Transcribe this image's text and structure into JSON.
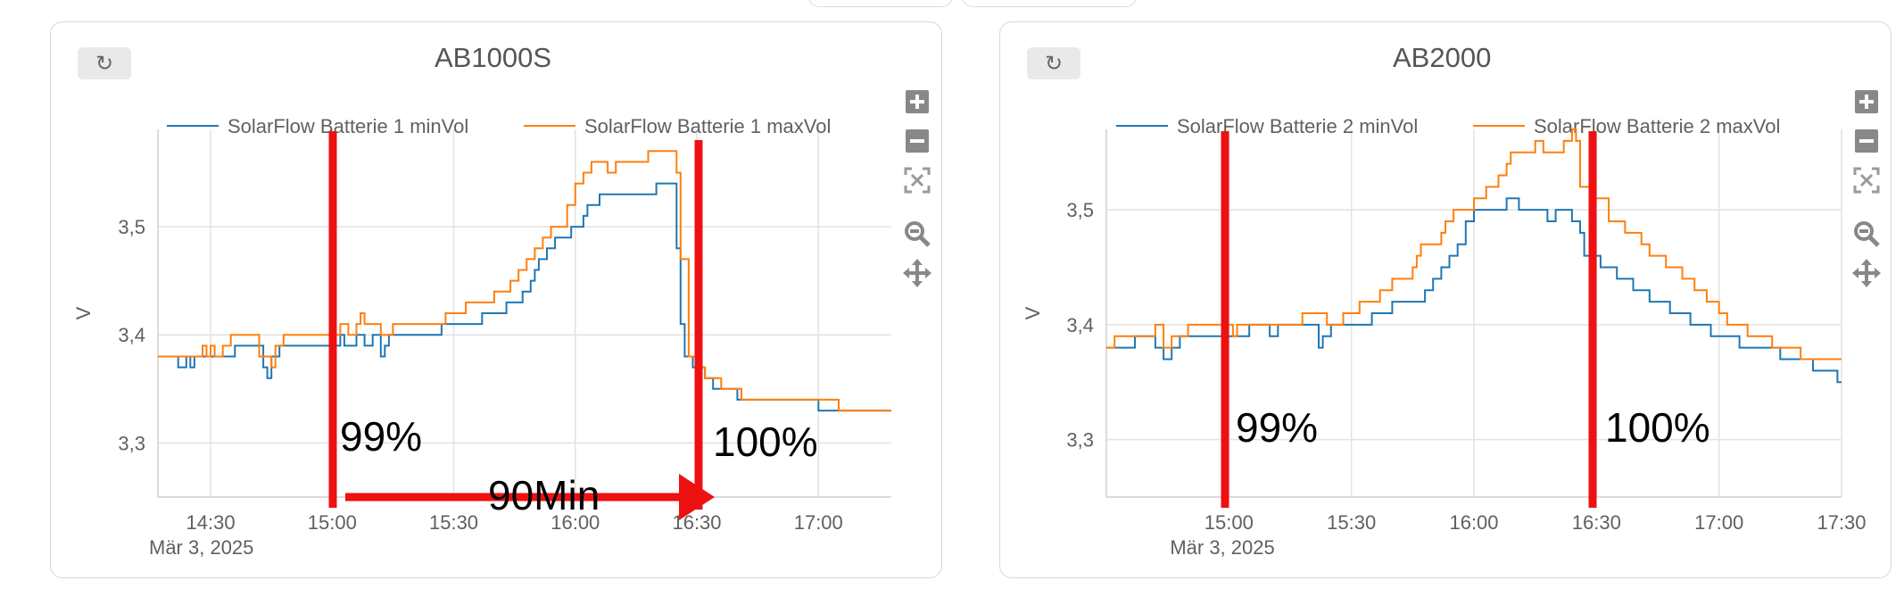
{
  "page_background": "#ffffff",
  "colors": {
    "min_series": "#1f77b4",
    "max_series": "#ff7f0e",
    "annotation": "#ee1111",
    "grid": "#e2e2e2",
    "axis_text": "#606060"
  },
  "panels": [
    {
      "reset_icon": "refresh-icon",
      "title": "AB1000S",
      "legend": [
        {
          "label": "SolarFlow Batterie 1 minVol",
          "color": "#1f77b4"
        },
        {
          "label": "SolarFlow Batterie 1 maxVol",
          "color": "#ff7f0e"
        }
      ],
      "ylabel": "V",
      "y_ticks": [
        "3,3",
        "3,4",
        "3,5"
      ],
      "x_ticks": [
        "14:30",
        "15:00",
        "15:30",
        "16:00",
        "16:30",
        "17:00"
      ],
      "x_date": "Mär 3, 2025",
      "annotations": {
        "left_label": "99%",
        "right_label": "100%",
        "duration_label": "90Min"
      },
      "modebar": [
        "zoom-in-icon",
        "zoom-out-icon",
        "autoscale-icon",
        "zoom-icon",
        "pan-icon"
      ]
    },
    {
      "reset_icon": "refresh-icon",
      "title": "AB2000",
      "legend": [
        {
          "label": "SolarFlow Batterie 2 minVol",
          "color": "#1f77b4"
        },
        {
          "label": "SolarFlow Batterie 2 maxVol",
          "color": "#ff7f0e"
        }
      ],
      "ylabel": "V",
      "y_ticks": [
        "3,3",
        "3,4",
        "3,5"
      ],
      "x_ticks": [
        "15:00",
        "15:30",
        "16:00",
        "16:30",
        "17:00",
        "17:30"
      ],
      "x_date": "Mär 3, 2025",
      "annotations": {
        "left_label": "99%",
        "right_label": "100%"
      },
      "modebar": [
        "zoom-in-icon",
        "zoom-out-icon",
        "autoscale-icon",
        "zoom-icon",
        "pan-icon"
      ]
    }
  ],
  "chart_data": [
    {
      "type": "line",
      "title": "AB1000S",
      "ylabel": "V",
      "x_unit": "time on Mär 3, 2025 (HH:MM)",
      "xlim": [
        "14:17",
        "17:18"
      ],
      "ylim": [
        3.25,
        3.59
      ],
      "series": [
        {
          "name": "SolarFlow Batterie 1 minVol",
          "step": true,
          "points": [
            [
              "14:17",
              3.38
            ],
            [
              "14:22",
              3.37
            ],
            [
              "14:24",
              3.38
            ],
            [
              "14:25",
              3.37
            ],
            [
              "14:26",
              3.38
            ],
            [
              "14:36",
              3.39
            ],
            [
              "14:43",
              3.37
            ],
            [
              "14:44",
              3.36
            ],
            [
              "14:45",
              3.38
            ],
            [
              "14:47",
              3.39
            ],
            [
              "14:52",
              3.39
            ],
            [
              "15:00",
              3.39
            ],
            [
              "15:02",
              3.4
            ],
            [
              "15:03",
              3.39
            ],
            [
              "15:06",
              3.4
            ],
            [
              "15:08",
              3.39
            ],
            [
              "15:10",
              3.4
            ],
            [
              "15:12",
              3.38
            ],
            [
              "15:13",
              3.39
            ],
            [
              "15:14",
              3.4
            ],
            [
              "15:27",
              3.41
            ],
            [
              "15:37",
              3.42
            ],
            [
              "15:43",
              3.43
            ],
            [
              "15:47",
              3.44
            ],
            [
              "15:49",
              3.45
            ],
            [
              "15:50",
              3.46
            ],
            [
              "15:51",
              3.47
            ],
            [
              "15:53",
              3.48
            ],
            [
              "15:55",
              3.49
            ],
            [
              "15:59",
              3.5
            ],
            [
              "16:02",
              3.51
            ],
            [
              "16:03",
              3.52
            ],
            [
              "16:06",
              3.53
            ],
            [
              "16:18",
              3.53
            ],
            [
              "16:20",
              3.54
            ],
            [
              "16:25",
              3.48
            ],
            [
              "16:26",
              3.41
            ],
            [
              "16:27",
              3.38
            ],
            [
              "16:29",
              3.37
            ],
            [
              "16:32",
              3.36
            ],
            [
              "16:34",
              3.35
            ],
            [
              "16:40",
              3.34
            ],
            [
              "16:59",
              3.34
            ],
            [
              "17:00",
              3.33
            ],
            [
              "17:18",
              3.33
            ]
          ]
        },
        {
          "name": "SolarFlow Batterie 1 maxVol",
          "step": true,
          "points": [
            [
              "14:17",
              3.38
            ],
            [
              "14:27",
              3.38
            ],
            [
              "14:28",
              3.39
            ],
            [
              "14:29",
              3.38
            ],
            [
              "14:30",
              3.39
            ],
            [
              "14:31",
              3.38
            ],
            [
              "14:33",
              3.39
            ],
            [
              "14:35",
              3.4
            ],
            [
              "14:42",
              3.38
            ],
            [
              "14:45",
              3.37
            ],
            [
              "14:46",
              3.39
            ],
            [
              "14:48",
              3.4
            ],
            [
              "15:00",
              3.4
            ],
            [
              "15:02",
              3.41
            ],
            [
              "15:04",
              3.4
            ],
            [
              "15:06",
              3.41
            ],
            [
              "15:07",
              3.42
            ],
            [
              "15:08",
              3.41
            ],
            [
              "15:12",
              3.4
            ],
            [
              "15:15",
              3.41
            ],
            [
              "15:23",
              3.41
            ],
            [
              "15:28",
              3.42
            ],
            [
              "15:33",
              3.43
            ],
            [
              "15:40",
              3.44
            ],
            [
              "15:44",
              3.45
            ],
            [
              "15:46",
              3.46
            ],
            [
              "15:48",
              3.47
            ],
            [
              "15:50",
              3.48
            ],
            [
              "15:52",
              3.49
            ],
            [
              "15:54",
              3.5
            ],
            [
              "15:58",
              3.52
            ],
            [
              "16:00",
              3.54
            ],
            [
              "16:02",
              3.55
            ],
            [
              "16:04",
              3.56
            ],
            [
              "16:08",
              3.55
            ],
            [
              "16:10",
              3.56
            ],
            [
              "16:15",
              3.56
            ],
            [
              "16:18",
              3.57
            ],
            [
              "16:25",
              3.55
            ],
            [
              "16:26",
              3.47
            ],
            [
              "16:28",
              3.38
            ],
            [
              "16:30",
              3.37
            ],
            [
              "16:32",
              3.36
            ],
            [
              "16:36",
              3.35
            ],
            [
              "16:41",
              3.34
            ],
            [
              "16:57",
              3.34
            ],
            [
              "17:01",
              3.34
            ],
            [
              "17:05",
              3.33
            ],
            [
              "17:18",
              3.33
            ]
          ]
        }
      ]
    },
    {
      "type": "line",
      "title": "AB2000",
      "ylabel": "V",
      "x_unit": "time on Mär 3, 2025 (HH:MM)",
      "xlim": [
        "14:30",
        "17:30"
      ],
      "ylim": [
        3.25,
        3.57
      ],
      "series": [
        {
          "name": "SolarFlow Batterie 2 minVol",
          "step": true,
          "points": [
            [
              "14:30",
              3.38
            ],
            [
              "14:37",
              3.39
            ],
            [
              "14:42",
              3.38
            ],
            [
              "14:44",
              3.37
            ],
            [
              "14:46",
              3.38
            ],
            [
              "14:48",
              3.39
            ],
            [
              "15:00",
              3.39
            ],
            [
              "15:05",
              3.4
            ],
            [
              "15:10",
              3.39
            ],
            [
              "15:12",
              3.4
            ],
            [
              "15:22",
              3.38
            ],
            [
              "15:23",
              3.39
            ],
            [
              "15:25",
              3.4
            ],
            [
              "15:30",
              3.4
            ],
            [
              "15:35",
              3.41
            ],
            [
              "15:40",
              3.42
            ],
            [
              "15:48",
              3.43
            ],
            [
              "15:50",
              3.44
            ],
            [
              "15:52",
              3.45
            ],
            [
              "15:54",
              3.46
            ],
            [
              "15:56",
              3.47
            ],
            [
              "15:58",
              3.49
            ],
            [
              "16:00",
              3.5
            ],
            [
              "16:08",
              3.51
            ],
            [
              "16:11",
              3.5
            ],
            [
              "16:15",
              3.5
            ],
            [
              "16:18",
              3.49
            ],
            [
              "16:20",
              3.5
            ],
            [
              "16:24",
              3.49
            ],
            [
              "16:26",
              3.48
            ],
            [
              "16:27",
              3.46
            ],
            [
              "16:31",
              3.45
            ],
            [
              "16:35",
              3.44
            ],
            [
              "16:39",
              3.43
            ],
            [
              "16:43",
              3.42
            ],
            [
              "16:48",
              3.41
            ],
            [
              "16:53",
              3.4
            ],
            [
              "16:58",
              3.39
            ],
            [
              "17:05",
              3.38
            ],
            [
              "17:15",
              3.37
            ],
            [
              "17:23",
              3.36
            ],
            [
              "17:29",
              3.35
            ],
            [
              "17:30",
              3.35
            ]
          ]
        },
        {
          "name": "SolarFlow Batterie 2 maxVol",
          "step": true,
          "points": [
            [
              "14:30",
              3.38
            ],
            [
              "14:32",
              3.39
            ],
            [
              "14:42",
              3.4
            ],
            [
              "14:44",
              3.38
            ],
            [
              "14:46",
              3.39
            ],
            [
              "14:50",
              3.4
            ],
            [
              "15:01",
              3.39
            ],
            [
              "15:02",
              3.4
            ],
            [
              "15:11",
              3.4
            ],
            [
              "15:14",
              3.4
            ],
            [
              "15:18",
              3.41
            ],
            [
              "15:24",
              3.4
            ],
            [
              "15:28",
              3.41
            ],
            [
              "15:32",
              3.42
            ],
            [
              "15:37",
              3.43
            ],
            [
              "15:40",
              3.44
            ],
            [
              "15:45",
              3.45
            ],
            [
              "15:46",
              3.46
            ],
            [
              "15:47",
              3.47
            ],
            [
              "15:52",
              3.48
            ],
            [
              "15:53",
              3.49
            ],
            [
              "15:55",
              3.5
            ],
            [
              "16:00",
              3.51
            ],
            [
              "16:03",
              3.52
            ],
            [
              "16:06",
              3.53
            ],
            [
              "16:08",
              3.54
            ],
            [
              "16:09",
              3.55
            ],
            [
              "16:14",
              3.55
            ],
            [
              "16:15",
              3.56
            ],
            [
              "16:17",
              3.55
            ],
            [
              "16:22",
              3.56
            ],
            [
              "16:24",
              3.57
            ],
            [
              "16:25",
              3.56
            ],
            [
              "16:26",
              3.52
            ],
            [
              "16:29",
              3.51
            ],
            [
              "16:33",
              3.49
            ],
            [
              "16:37",
              3.48
            ],
            [
              "16:41",
              3.47
            ],
            [
              "16:43",
              3.46
            ],
            [
              "16:47",
              3.45
            ],
            [
              "16:51",
              3.44
            ],
            [
              "16:54",
              3.43
            ],
            [
              "16:57",
              3.42
            ],
            [
              "17:00",
              3.41
            ],
            [
              "17:02",
              3.4
            ],
            [
              "17:07",
              3.39
            ],
            [
              "17:13",
              3.38
            ],
            [
              "17:20",
              3.37
            ],
            [
              "17:30",
              3.37
            ]
          ]
        }
      ]
    }
  ]
}
